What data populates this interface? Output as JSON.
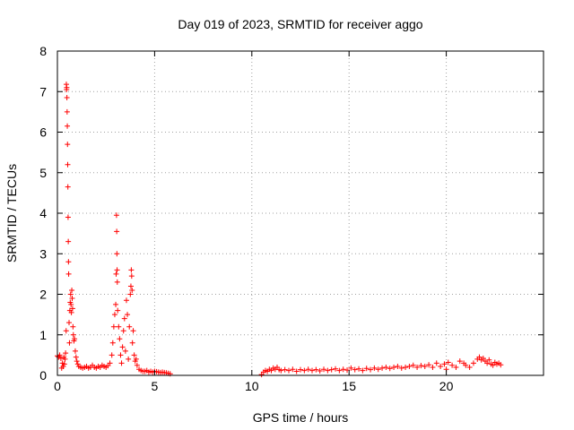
{
  "chart_data": {
    "type": "scatter",
    "title": "Day 019 of 2023, SRMTID for receiver aggo",
    "xlabel": "GPS time / hours",
    "ylabel": "SRMTID / TECUs",
    "xlim": [
      0,
      25
    ],
    "ylim": [
      0,
      8
    ],
    "xticks": [
      0,
      5,
      10,
      15,
      20
    ],
    "yticks": [
      0,
      1,
      2,
      3,
      4,
      5,
      6,
      7,
      8
    ],
    "grid": true,
    "marker": "+",
    "series_color": "#ff0000",
    "series": [
      {
        "name": "SRMTID",
        "points": [
          [
            0.0,
            0.48
          ],
          [
            0.06,
            0.45
          ],
          [
            0.12,
            0.5
          ],
          [
            0.18,
            0.42
          ],
          [
            0.22,
            0.18
          ],
          [
            0.26,
            0.3
          ],
          [
            0.3,
            0.22
          ],
          [
            0.33,
            0.45
          ],
          [
            0.36,
            0.28
          ],
          [
            0.39,
            0.4
          ],
          [
            0.42,
            0.55
          ],
          [
            0.45,
            1.1
          ],
          [
            0.46,
            7.18
          ],
          [
            0.47,
            7.05
          ],
          [
            0.48,
            7.1
          ],
          [
            0.49,
            6.85
          ],
          [
            0.5,
            6.5
          ],
          [
            0.51,
            6.15
          ],
          [
            0.52,
            5.7
          ],
          [
            0.53,
            5.2
          ],
          [
            0.54,
            4.65
          ],
          [
            0.55,
            3.9
          ],
          [
            0.56,
            3.3
          ],
          [
            0.57,
            2.8
          ],
          [
            0.58,
            2.5
          ],
          [
            0.6,
            1.3
          ],
          [
            0.62,
            0.8
          ],
          [
            0.64,
            1.6
          ],
          [
            0.66,
            1.8
          ],
          [
            0.68,
            2.0
          ],
          [
            0.7,
            1.75
          ],
          [
            0.72,
            1.55
          ],
          [
            0.74,
            2.1
          ],
          [
            0.76,
            1.9
          ],
          [
            0.78,
            1.65
          ],
          [
            0.8,
            1.2
          ],
          [
            0.82,
            1.0
          ],
          [
            0.85,
            0.85
          ],
          [
            0.88,
            0.9
          ],
          [
            0.92,
            0.6
          ],
          [
            0.96,
            0.45
          ],
          [
            1.0,
            0.35
          ],
          [
            1.05,
            0.28
          ],
          [
            1.1,
            0.22
          ],
          [
            1.2,
            0.2
          ],
          [
            1.3,
            0.18
          ],
          [
            1.4,
            0.2
          ],
          [
            1.5,
            0.22
          ],
          [
            1.6,
            0.18
          ],
          [
            1.7,
            0.2
          ],
          [
            1.8,
            0.25
          ],
          [
            1.9,
            0.2
          ],
          [
            2.0,
            0.18
          ],
          [
            2.1,
            0.22
          ],
          [
            2.2,
            0.2
          ],
          [
            2.3,
            0.25
          ],
          [
            2.4,
            0.22
          ],
          [
            2.5,
            0.2
          ],
          [
            2.6,
            0.24
          ],
          [
            2.7,
            0.3
          ],
          [
            2.8,
            0.5
          ],
          [
            2.85,
            0.8
          ],
          [
            2.9,
            1.2
          ],
          [
            2.95,
            1.5
          ],
          [
            3.0,
            1.75
          ],
          [
            3.02,
            2.5
          ],
          [
            3.04,
            3.95
          ],
          [
            3.05,
            3.55
          ],
          [
            3.06,
            3.0
          ],
          [
            3.07,
            2.6
          ],
          [
            3.08,
            2.3
          ],
          [
            3.1,
            1.6
          ],
          [
            3.15,
            1.2
          ],
          [
            3.2,
            0.9
          ],
          [
            3.25,
            0.5
          ],
          [
            3.3,
            0.3
          ],
          [
            3.35,
            0.7
          ],
          [
            3.4,
            1.1
          ],
          [
            3.45,
            1.4
          ],
          [
            3.5,
            0.6
          ],
          [
            3.55,
            1.85
          ],
          [
            3.6,
            1.5
          ],
          [
            3.65,
            0.4
          ],
          [
            3.7,
            1.2
          ],
          [
            3.75,
            2.0
          ],
          [
            3.78,
            2.2
          ],
          [
            3.8,
            2.6
          ],
          [
            3.82,
            2.45
          ],
          [
            3.84,
            2.1
          ],
          [
            3.86,
            0.8
          ],
          [
            3.9,
            1.1
          ],
          [
            3.95,
            0.5
          ],
          [
            4.0,
            0.35
          ],
          [
            4.05,
            0.4
          ],
          [
            4.1,
            0.25
          ],
          [
            4.2,
            0.15
          ],
          [
            4.3,
            0.12
          ],
          [
            4.4,
            0.1
          ],
          [
            4.5,
            0.1
          ],
          [
            4.6,
            0.12
          ],
          [
            4.7,
            0.08
          ],
          [
            4.8,
            0.1
          ],
          [
            4.9,
            0.08
          ],
          [
            5.0,
            0.1
          ],
          [
            5.1,
            0.09
          ],
          [
            5.2,
            0.08
          ],
          [
            5.3,
            0.07
          ],
          [
            5.4,
            0.08
          ],
          [
            5.5,
            0.07
          ],
          [
            5.6,
            0.06
          ],
          [
            5.7,
            0.05
          ],
          [
            5.8,
            0.04
          ],
          [
            10.5,
            0.02
          ],
          [
            10.6,
            0.08
          ],
          [
            10.7,
            0.12
          ],
          [
            10.8,
            0.1
          ],
          [
            10.9,
            0.15
          ],
          [
            11.0,
            0.12
          ],
          [
            11.1,
            0.18
          ],
          [
            11.2,
            0.15
          ],
          [
            11.3,
            0.2
          ],
          [
            11.4,
            0.14
          ],
          [
            11.5,
            0.12
          ],
          [
            11.7,
            0.14
          ],
          [
            11.9,
            0.12
          ],
          [
            12.1,
            0.15
          ],
          [
            12.3,
            0.1
          ],
          [
            12.5,
            0.14
          ],
          [
            12.7,
            0.12
          ],
          [
            12.9,
            0.15
          ],
          [
            13.1,
            0.12
          ],
          [
            13.3,
            0.14
          ],
          [
            13.5,
            0.11
          ],
          [
            13.7,
            0.15
          ],
          [
            13.9,
            0.12
          ],
          [
            14.1,
            0.14
          ],
          [
            14.3,
            0.16
          ],
          [
            14.5,
            0.12
          ],
          [
            14.7,
            0.15
          ],
          [
            14.9,
            0.13
          ],
          [
            15.1,
            0.18
          ],
          [
            15.3,
            0.14
          ],
          [
            15.5,
            0.16
          ],
          [
            15.7,
            0.12
          ],
          [
            15.9,
            0.17
          ],
          [
            16.1,
            0.14
          ],
          [
            16.3,
            0.18
          ],
          [
            16.5,
            0.15
          ],
          [
            16.7,
            0.18
          ],
          [
            16.9,
            0.2
          ],
          [
            17.1,
            0.17
          ],
          [
            17.3,
            0.2
          ],
          [
            17.5,
            0.22
          ],
          [
            17.7,
            0.18
          ],
          [
            17.9,
            0.2
          ],
          [
            18.1,
            0.22
          ],
          [
            18.3,
            0.25
          ],
          [
            18.5,
            0.2
          ],
          [
            18.7,
            0.24
          ],
          [
            18.9,
            0.22
          ],
          [
            19.1,
            0.26
          ],
          [
            19.3,
            0.2
          ],
          [
            19.5,
            0.3
          ],
          [
            19.7,
            0.22
          ],
          [
            19.9,
            0.28
          ],
          [
            20.0,
            0.15
          ],
          [
            20.1,
            0.32
          ],
          [
            20.3,
            0.25
          ],
          [
            20.5,
            0.2
          ],
          [
            20.7,
            0.35
          ],
          [
            20.9,
            0.3
          ],
          [
            21.0,
            0.25
          ],
          [
            21.2,
            0.2
          ],
          [
            21.4,
            0.3
          ],
          [
            21.6,
            0.4
          ],
          [
            21.7,
            0.45
          ],
          [
            21.8,
            0.38
          ],
          [
            21.9,
            0.42
          ],
          [
            22.0,
            0.35
          ],
          [
            22.1,
            0.3
          ],
          [
            22.2,
            0.38
          ],
          [
            22.3,
            0.28
          ],
          [
            22.4,
            0.25
          ],
          [
            22.5,
            0.32
          ],
          [
            22.6,
            0.28
          ],
          [
            22.7,
            0.3
          ],
          [
            22.8,
            0.26
          ]
        ]
      }
    ]
  }
}
